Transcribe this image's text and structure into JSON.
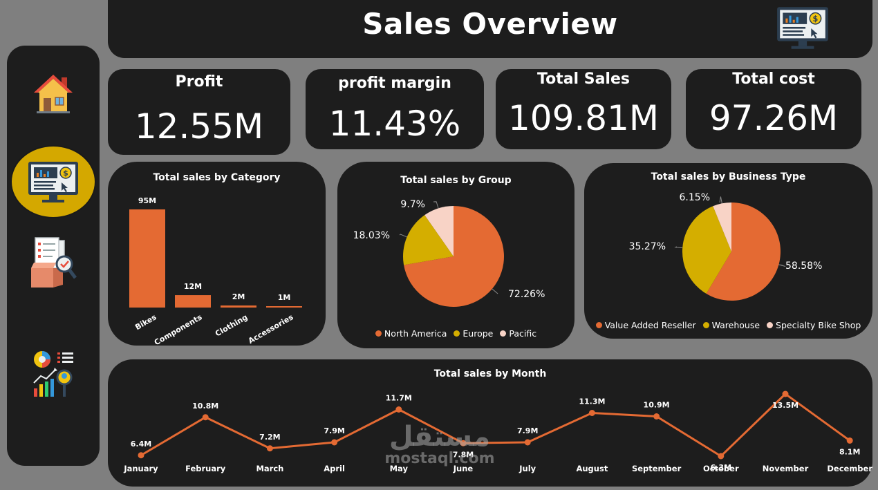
{
  "header": {
    "title": "Sales Overview",
    "icon": "dashboard-monitor-icon"
  },
  "sidebar": {
    "items": [
      {
        "name": "home",
        "icon": "home-icon"
      },
      {
        "name": "dashboard",
        "icon": "dashboard-monitor-icon",
        "active": true
      },
      {
        "name": "inventory",
        "icon": "inventory-checklist-icon"
      },
      {
        "name": "analytics",
        "icon": "analytics-icon"
      }
    ],
    "active_bg": "#d4a800"
  },
  "kpis": [
    {
      "label": "Profit",
      "value": "12.55M"
    },
    {
      "label": "profit margin",
      "value": "11.43%"
    },
    {
      "label": "Total Sales",
      "value": "109.81M"
    },
    {
      "label": "Total cost",
      "value": "97.26M"
    }
  ],
  "colors": {
    "orange": "#e46a33",
    "yellow": "#d4ae00",
    "pink": "#f8d3c6",
    "panel": "#1d1d1d",
    "background": "#7f7f7f"
  },
  "chart_data": [
    {
      "type": "bar",
      "title": "Total sales by Category",
      "categories": [
        "Bikes",
        "Components",
        "Clothing",
        "Accessories"
      ],
      "values": [
        95,
        12,
        2,
        1
      ],
      "labels": [
        "95M",
        "12M",
        "2M",
        "1M"
      ],
      "ylim": [
        0,
        95
      ],
      "unit": "M"
    },
    {
      "type": "pie",
      "title": "Total sales by Group",
      "categories": [
        "North America",
        "Europe",
        "Pacific"
      ],
      "values": [
        72.26,
        18.03,
        9.7
      ],
      "labels": [
        "72.26%",
        "18.03%",
        "9.7%"
      ],
      "legend": "bottom"
    },
    {
      "type": "pie",
      "title": "Total sales by Business Type",
      "categories": [
        "Value Added Reseller",
        "Warehouse",
        "Specialty Bike Shop"
      ],
      "values": [
        58.58,
        35.27,
        6.15
      ],
      "labels": [
        "58.58%",
        "35.27%",
        "6.15%"
      ],
      "legend": "bottom"
    },
    {
      "type": "line",
      "title": "Total sales by Month",
      "categories": [
        "January",
        "February",
        "March",
        "April",
        "May",
        "June",
        "July",
        "August",
        "September",
        "October",
        "November",
        "December"
      ],
      "values": [
        6.4,
        10.8,
        7.2,
        7.9,
        11.7,
        7.8,
        7.9,
        11.3,
        10.9,
        6.3,
        13.5,
        8.1
      ],
      "labels": [
        "6.4M",
        "10.8M",
        "7.2M",
        "7.9M",
        "11.7M",
        "7.8M",
        "7.9M",
        "11.3M",
        "10.9M",
        "6.3M",
        "13.5M",
        "8.1M"
      ],
      "unit": "M"
    }
  ],
  "watermark": {
    "arabic": "مستقل",
    "latin": "mostaql.com"
  }
}
